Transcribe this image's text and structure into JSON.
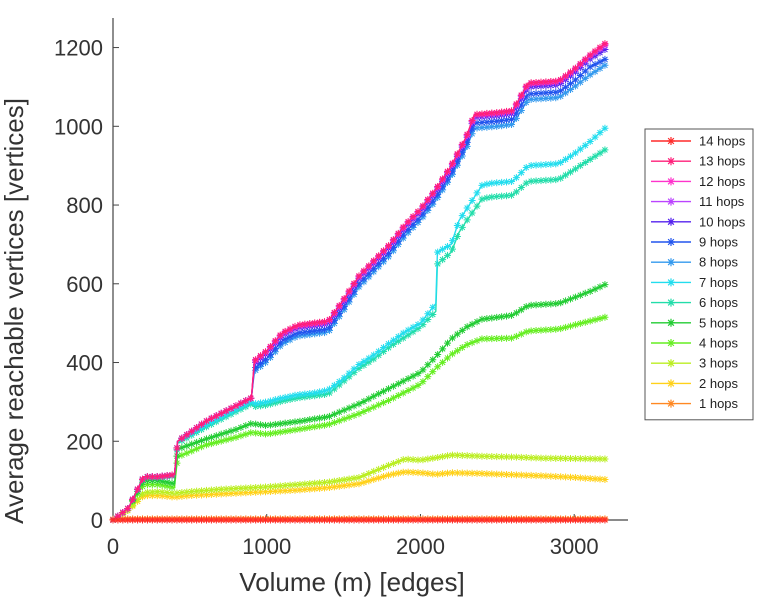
{
  "chart_data": {
    "type": "line",
    "title": "",
    "xlabel": "Volume (m) [edges]",
    "ylabel": "Average reachable vertices [vertices]",
    "xlim": [
      0,
      3350
    ],
    "ylim": [
      0,
      1270
    ],
    "xticks": [
      0,
      1000,
      2000,
      3000
    ],
    "yticks": [
      0,
      200,
      400,
      600,
      800,
      1000,
      1200
    ],
    "legend_position": "right",
    "marker": "asterisk",
    "series": [
      {
        "name": "14 hops",
        "color": "#ff2a2a",
        "x": [
          0,
          100,
          200,
          400,
          600,
          800,
          1000,
          1500,
          2000,
          2500,
          3000,
          3200
        ],
        "y": [
          0,
          0,
          0,
          0,
          0,
          0,
          0,
          0,
          0,
          0,
          0,
          0
        ]
      },
      {
        "name": "13 hops",
        "color": "#ff1f7a",
        "x": [
          0,
          100,
          200,
          300,
          400,
          420,
          600,
          800,
          900,
          920,
          1000,
          1100,
          1200,
          1300,
          1400,
          1500,
          1600,
          1700,
          1800,
          1900,
          2000,
          2100,
          2200,
          2300,
          2350,
          2500,
          2600,
          2700,
          2900,
          3000,
          3100,
          3200
        ],
        "y": [
          0,
          30,
          110,
          110,
          115,
          200,
          250,
          290,
          310,
          405,
          430,
          475,
          495,
          500,
          505,
          560,
          620,
          660,
          700,
          750,
          790,
          840,
          900,
          975,
          1030,
          1035,
          1040,
          1110,
          1115,
          1145,
          1180,
          1210
        ]
      },
      {
        "name": "12 hops",
        "color": "#ff33cc",
        "x": [
          0,
          100,
          200,
          300,
          400,
          420,
          600,
          800,
          900,
          920,
          1000,
          1100,
          1200,
          1300,
          1400,
          1500,
          1600,
          1700,
          1800,
          1900,
          2000,
          2100,
          2200,
          2300,
          2350,
          2500,
          2600,
          2700,
          2900,
          3000,
          3100,
          3200
        ],
        "y": [
          0,
          30,
          110,
          110,
          115,
          200,
          250,
          290,
          310,
          404,
          429,
          474,
          494,
          499,
          504,
          559,
          619,
          659,
          699,
          749,
          789,
          839,
          899,
          974,
          1029,
          1034,
          1039,
          1109,
          1114,
          1144,
          1179,
          1208
        ]
      },
      {
        "name": "11 hops",
        "color": "#bb44ff",
        "x": [
          0,
          100,
          200,
          300,
          400,
          420,
          600,
          800,
          900,
          920,
          1000,
          1100,
          1200,
          1300,
          1400,
          1500,
          1600,
          1700,
          1800,
          1900,
          2000,
          2100,
          2200,
          2300,
          2350,
          2500,
          2600,
          2700,
          2900,
          3000,
          3100,
          3200
        ],
        "y": [
          0,
          30,
          110,
          110,
          115,
          200,
          250,
          290,
          310,
          402,
          427,
          472,
          492,
          497,
          502,
          557,
          617,
          657,
          697,
          747,
          787,
          837,
          897,
          972,
          1027,
          1032,
          1037,
          1107,
          1112,
          1142,
          1177,
          1205
        ]
      },
      {
        "name": "10 hops",
        "color": "#5522ee",
        "x": [
          0,
          100,
          200,
          300,
          400,
          420,
          600,
          800,
          900,
          920,
          1000,
          1100,
          1200,
          1300,
          1400,
          1500,
          1600,
          1700,
          1800,
          1900,
          2000,
          2100,
          2200,
          2300,
          2350,
          2500,
          2600,
          2700,
          2900,
          3000,
          3100,
          3200
        ],
        "y": [
          0,
          30,
          110,
          110,
          115,
          200,
          250,
          290,
          310,
          398,
          423,
          468,
          488,
          493,
          498,
          553,
          613,
          653,
          693,
          743,
          783,
          833,
          893,
          968,
          1022,
          1027,
          1032,
          1100,
          1105,
          1135,
          1170,
          1195
        ]
      },
      {
        "name": "9 hops",
        "color": "#2255ee",
        "x": [
          0,
          100,
          200,
          300,
          400,
          420,
          600,
          800,
          900,
          920,
          1000,
          1100,
          1200,
          1300,
          1400,
          1500,
          1600,
          1700,
          1800,
          1900,
          2000,
          2100,
          2200,
          2300,
          2350,
          2500,
          2600,
          2700,
          2900,
          3000,
          3100,
          3200
        ],
        "y": [
          0,
          30,
          110,
          110,
          115,
          200,
          250,
          290,
          310,
          385,
          410,
          455,
          475,
          480,
          485,
          540,
          600,
          640,
          680,
          730,
          770,
          820,
          880,
          955,
          1008,
          1013,
          1018,
          1082,
          1087,
          1115,
          1150,
          1170
        ]
      },
      {
        "name": "8 hops",
        "color": "#3399ee",
        "x": [
          0,
          100,
          200,
          300,
          400,
          420,
          600,
          800,
          900,
          920,
          1000,
          1100,
          1200,
          1300,
          1400,
          1500,
          1600,
          1700,
          1800,
          1900,
          2000,
          2100,
          2200,
          2300,
          2350,
          2500,
          2600,
          2700,
          2900,
          3000,
          3100,
          3200
        ],
        "y": [
          0,
          30,
          110,
          110,
          115,
          200,
          250,
          290,
          310,
          378,
          402,
          447,
          467,
          472,
          477,
          532,
          592,
          632,
          672,
          722,
          762,
          812,
          872,
          945,
          995,
          1000,
          1005,
          1068,
          1073,
          1100,
          1130,
          1155
        ]
      },
      {
        "name": "7 hops",
        "color": "#22ddee",
        "x": [
          0,
          100,
          200,
          300,
          400,
          420,
          600,
          800,
          900,
          920,
          1000,
          1100,
          1200,
          1300,
          1400,
          1500,
          1600,
          1700,
          1800,
          1900,
          2000,
          2100,
          2110,
          2200,
          2250,
          2300,
          2400,
          2450,
          2600,
          2700,
          2900,
          3000,
          3100,
          3200
        ],
        "y": [
          0,
          30,
          110,
          110,
          115,
          200,
          240,
          280,
          300,
          295,
          300,
          310,
          318,
          322,
          330,
          360,
          395,
          420,
          450,
          478,
          500,
          550,
          680,
          700,
          760,
          790,
          850,
          855,
          860,
          900,
          905,
          930,
          960,
          995
        ]
      },
      {
        "name": "6 hops",
        "color": "#22ddaa",
        "x": [
          0,
          100,
          200,
          300,
          400,
          420,
          600,
          800,
          900,
          920,
          1000,
          1100,
          1200,
          1300,
          1400,
          1500,
          1600,
          1700,
          1800,
          1900,
          2000,
          2100,
          2110,
          2200,
          2250,
          2300,
          2400,
          2450,
          2600,
          2700,
          2900,
          3000,
          3100,
          3200
        ],
        "y": [
          0,
          30,
          108,
          108,
          112,
          195,
          235,
          275,
          295,
          288,
          292,
          302,
          310,
          315,
          320,
          352,
          385,
          410,
          440,
          465,
          490,
          530,
          650,
          680,
          730,
          760,
          815,
          820,
          825,
          860,
          865,
          890,
          915,
          940
        ]
      },
      {
        "name": "5 hops",
        "color": "#22cc33",
        "x": [
          0,
          100,
          200,
          300,
          400,
          420,
          600,
          800,
          900,
          1000,
          1200,
          1400,
          1600,
          1800,
          2000,
          2100,
          2200,
          2300,
          2400,
          2600,
          2700,
          2900,
          3000,
          3100,
          3200
        ],
        "y": [
          0,
          30,
          100,
          100,
          92,
          180,
          205,
          230,
          245,
          240,
          250,
          262,
          295,
          335,
          375,
          415,
          460,
          490,
          510,
          520,
          545,
          550,
          565,
          580,
          598
        ]
      },
      {
        "name": "4 hops",
        "color": "#66ee22",
        "x": [
          0,
          100,
          200,
          300,
          400,
          420,
          600,
          800,
          900,
          1000,
          1200,
          1400,
          1600,
          1800,
          2000,
          2100,
          2200,
          2300,
          2400,
          2600,
          2700,
          2900,
          3000,
          3100,
          3200
        ],
        "y": [
          0,
          30,
          90,
          90,
          82,
          160,
          190,
          210,
          222,
          218,
          230,
          242,
          270,
          305,
          345,
          385,
          420,
          445,
          460,
          462,
          480,
          485,
          495,
          505,
          515
        ]
      },
      {
        "name": "3 hops",
        "color": "#bbee22",
        "x": [
          0,
          100,
          200,
          300,
          400,
          500,
          600,
          700,
          800,
          1000,
          1200,
          1400,
          1600,
          1800,
          1900,
          2000,
          2100,
          2200,
          2400,
          2600,
          2800,
          3000,
          3200
        ],
        "y": [
          0,
          25,
          70,
          72,
          68,
          72,
          75,
          78,
          80,
          84,
          90,
          96,
          108,
          140,
          155,
          152,
          158,
          165,
          162,
          160,
          157,
          156,
          155
        ]
      },
      {
        "name": "2 hops",
        "color": "#ffd11a",
        "x": [
          0,
          100,
          200,
          300,
          400,
          500,
          600,
          700,
          800,
          1000,
          1200,
          1400,
          1600,
          1800,
          1900,
          2000,
          2100,
          2200,
          2400,
          2600,
          2800,
          3000,
          3200
        ],
        "y": [
          0,
          25,
          62,
          62,
          58,
          62,
          64,
          66,
          68,
          72,
          76,
          82,
          92,
          115,
          122,
          120,
          116,
          120,
          118,
          115,
          112,
          108,
          103
        ]
      },
      {
        "name": "1 hops",
        "color": "#ff8822",
        "x": [
          0,
          100,
          200,
          400,
          600,
          800,
          1000,
          1500,
          2000,
          2500,
          3000,
          3200
        ],
        "y": [
          2,
          3,
          3,
          3,
          3,
          3,
          3,
          3,
          3,
          3,
          3,
          3
        ]
      }
    ]
  }
}
